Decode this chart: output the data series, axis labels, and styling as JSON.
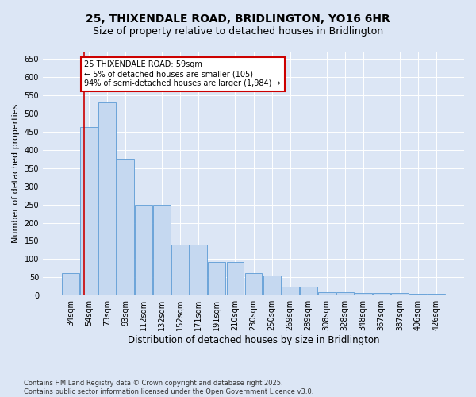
{
  "title_line1": "25, THIXENDALE ROAD, BRIDLINGTON, YO16 6HR",
  "title_line2": "Size of property relative to detached houses in Bridlington",
  "xlabel": "Distribution of detached houses by size in Bridlington",
  "ylabel": "Number of detached properties",
  "categories": [
    "34sqm",
    "54sqm",
    "73sqm",
    "93sqm",
    "112sqm",
    "132sqm",
    "152sqm",
    "171sqm",
    "191sqm",
    "210sqm",
    "230sqm",
    "250sqm",
    "269sqm",
    "289sqm",
    "308sqm",
    "328sqm",
    "348sqm",
    "367sqm",
    "387sqm",
    "406sqm",
    "426sqm"
  ],
  "values": [
    62,
    463,
    530,
    375,
    250,
    248,
    140,
    140,
    92,
    92,
    62,
    55,
    25,
    25,
    10,
    10,
    6,
    6,
    8,
    5,
    4
  ],
  "bar_color": "#c5d8f0",
  "bar_edge_color": "#5b9bd5",
  "annotation_box_text": "25 THIXENDALE ROAD: 59sqm\n← 5% of detached houses are smaller (105)\n94% of semi-detached houses are larger (1,984) →",
  "annotation_box_color": "#ffffff",
  "annotation_box_edgecolor": "#cc0000",
  "vline_color": "#cc0000",
  "vline_x": 0.72,
  "ylim": [
    0,
    670
  ],
  "yticks": [
    0,
    50,
    100,
    150,
    200,
    250,
    300,
    350,
    400,
    450,
    500,
    550,
    600,
    650
  ],
  "background_color": "#dce6f5",
  "plot_bg_color": "#dce6f5",
  "footnote": "Contains HM Land Registry data © Crown copyright and database right 2025.\nContains public sector information licensed under the Open Government Licence v3.0.",
  "title_fontsize": 10,
  "subtitle_fontsize": 9,
  "xlabel_fontsize": 8.5,
  "ylabel_fontsize": 8,
  "tick_fontsize": 7,
  "annot_fontsize": 7,
  "footnote_fontsize": 6
}
